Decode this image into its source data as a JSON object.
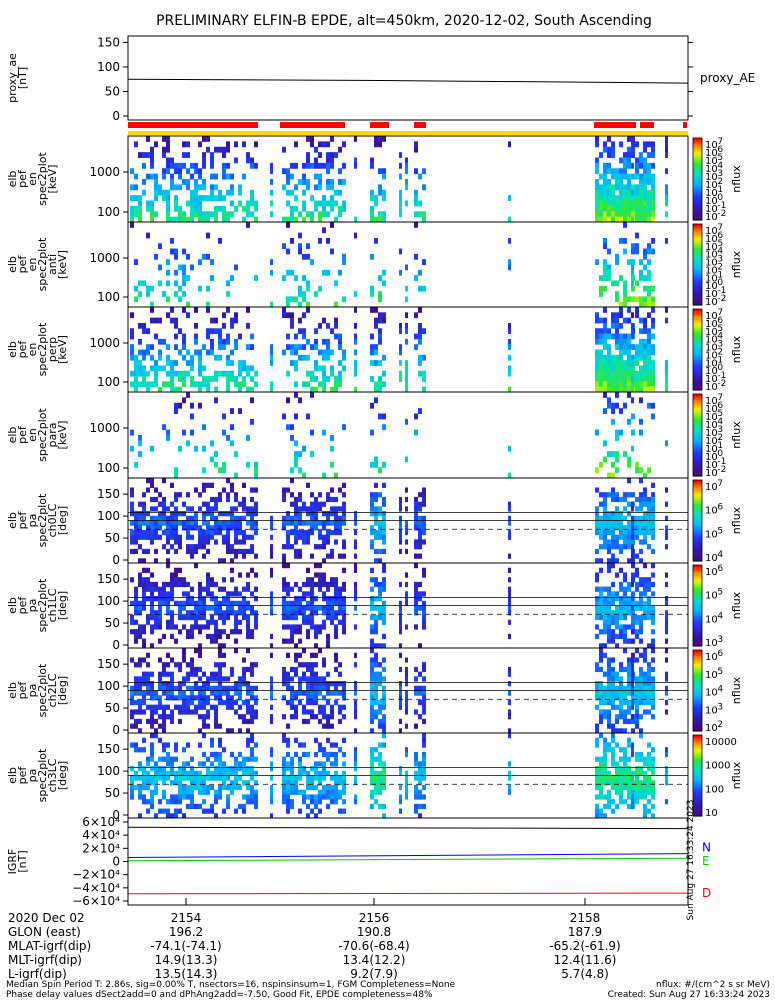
{
  "title": "PRELIMINARY ELFIN-B EPDE, alt=450km, 2020-12-02, South Ascending",
  "colors": {
    "science_bar": "#ff0000",
    "sun_bar": "#ffd800",
    "proxy_line": "#000000",
    "igrf_N": "#0000ff",
    "igrf_E": "#00cc00",
    "igrf_D": "#ff0000"
  },
  "chart_data": [
    {
      "type": "line",
      "panel": "proxy_ae",
      "ylabel_lines": [
        "proxy_ae",
        "[nT]"
      ],
      "yticks": [
        "0",
        "50",
        "100",
        "150"
      ],
      "ylim": [
        0,
        155
      ],
      "series": [
        {
          "name": "proxy_AE",
          "x": [
            0,
            0.5,
            1
          ],
          "values": [
            75,
            72,
            67
          ]
        }
      ]
    },
    {
      "type": "heatmap",
      "panel": "en_spec_0",
      "ylabel_lines": [
        "elb",
        "pef",
        "en",
        "spec2plot",
        "[keV]"
      ],
      "yticks": [
        "100",
        "1000"
      ],
      "yscale": "log",
      "colorbar": {
        "label": "nflux",
        "ticks": [
          "10",
          "10",
          "10",
          "10",
          "10",
          "10",
          "10",
          "10",
          "10",
          "10"
        ],
        "exponents": [
          "7",
          "6",
          "5",
          "4",
          "3",
          "2",
          "1",
          "0",
          "-1",
          "-2"
        ]
      }
    },
    {
      "type": "heatmap",
      "panel": "en_spec_anti",
      "ylabel_lines": [
        "elb",
        "pef",
        "en",
        "spec2plot",
        "anti",
        "[keV]"
      ],
      "yticks": [
        "100",
        "1000"
      ],
      "yscale": "log",
      "colorbar": {
        "label": "nflux",
        "ticks": [
          "10",
          "10",
          "10",
          "10",
          "10",
          "10",
          "10",
          "10",
          "10",
          "10"
        ],
        "exponents": [
          "7",
          "6",
          "5",
          "4",
          "3",
          "2",
          "1",
          "0",
          "-1",
          "-2"
        ]
      }
    },
    {
      "type": "heatmap",
      "panel": "en_spec_perp",
      "ylabel_lines": [
        "elb",
        "pef",
        "en",
        "spec2plot",
        "perp",
        "[keV]"
      ],
      "yticks": [
        "100",
        "1000"
      ],
      "yscale": "log",
      "colorbar": {
        "label": "nflux",
        "ticks": [
          "10",
          "10",
          "10",
          "10",
          "10",
          "10",
          "10",
          "10",
          "10",
          "10"
        ],
        "exponents": [
          "7",
          "6",
          "5",
          "4",
          "3",
          "2",
          "1",
          "0",
          "-1",
          "-2"
        ]
      }
    },
    {
      "type": "heatmap",
      "panel": "en_spec_para",
      "ylabel_lines": [
        "elb",
        "pef",
        "en",
        "spec2plot",
        "para",
        "[keV]"
      ],
      "yticks": [
        "100",
        "1000"
      ],
      "yscale": "log",
      "colorbar": {
        "label": "nflux",
        "ticks": [
          "10",
          "10",
          "10",
          "10",
          "10",
          "10",
          "10",
          "10",
          "10",
          "10"
        ],
        "exponents": [
          "7",
          "6",
          "5",
          "4",
          "3",
          "2",
          "1",
          "0",
          "-1",
          "-2"
        ]
      }
    },
    {
      "type": "heatmap",
      "panel": "pa_ch0LC",
      "ylabel_lines": [
        "elb",
        "pef",
        "pa",
        "spec2plot",
        "ch0LC",
        "[deg]"
      ],
      "yticks": [
        "0",
        "50",
        "100",
        "150"
      ],
      "ylim": [
        0,
        180
      ],
      "colorbar": {
        "label": "nflux",
        "ticks": [
          "10",
          "10",
          "10",
          "10"
        ],
        "exponents": [
          "7",
          "6",
          "5",
          "4"
        ]
      }
    },
    {
      "type": "heatmap",
      "panel": "pa_ch1LC",
      "ylabel_lines": [
        "elb",
        "pef",
        "pa",
        "spec2plot",
        "ch1LC",
        "[deg]"
      ],
      "yticks": [
        "0",
        "50",
        "100",
        "150"
      ],
      "ylim": [
        0,
        180
      ],
      "colorbar": {
        "label": "nflux",
        "ticks": [
          "10",
          "10",
          "10",
          "10"
        ],
        "exponents": [
          "6",
          "5",
          "4",
          "3"
        ]
      }
    },
    {
      "type": "heatmap",
      "panel": "pa_ch2LC",
      "ylabel_lines": [
        "elb",
        "pef",
        "pa",
        "spec2plot",
        "ch2LC",
        "[deg]"
      ],
      "yticks": [
        "0",
        "50",
        "100",
        "150"
      ],
      "ylim": [
        0,
        180
      ],
      "colorbar": {
        "label": "nflux",
        "ticks": [
          "10",
          "10",
          "10",
          "10",
          "10"
        ],
        "exponents": [
          "6",
          "5",
          "4",
          "3",
          "2"
        ]
      }
    },
    {
      "type": "heatmap",
      "panel": "pa_ch3LC",
      "ylabel_lines": [
        "elb",
        "pef",
        "pa",
        "spec2plot",
        "ch3LC",
        "[deg]"
      ],
      "yticks": [
        "0",
        "50",
        "100",
        "150"
      ],
      "ylim": [
        0,
        180
      ],
      "colorbar": {
        "label": "nflux",
        "ticks": [
          "10000",
          "1000",
          "100",
          "10"
        ],
        "exponents": [
          "",
          "",
          "",
          ""
        ]
      }
    },
    {
      "type": "line",
      "panel": "igrf",
      "ylabel_lines": [
        "IGRF",
        "[nT]"
      ],
      "yticks": [
        "6×10⁴",
        "4×10⁴",
        "2×10⁴",
        "0",
        "−2×10⁴",
        "−4×10⁴",
        "−6×10⁴"
      ],
      "ylim": [
        -60000,
        60000
      ],
      "series": [
        {
          "name": "N",
          "x": [
            0,
            1
          ],
          "values": [
            6000,
            12000
          ]
        },
        {
          "name": "E",
          "x": [
            0,
            1
          ],
          "values": [
            1000,
            5000
          ]
        },
        {
          "name": "D",
          "x": [
            0,
            1
          ],
          "values": [
            -49000,
            -48000
          ]
        },
        {
          "x": [
            0,
            1
          ],
          "values": [
            52000,
            50000
          ]
        }
      ]
    }
  ],
  "footer": {
    "rows": [
      {
        "label": "2020 Dec 02",
        "values": [
          "2154",
          "2156",
          "2158"
        ]
      },
      {
        "label": "GLON (east)",
        "values": [
          "196.2",
          "190.8",
          "187.9"
        ]
      },
      {
        "label": "MLAT-igrf(dip)",
        "values": [
          "-74.1(-74.1)",
          "-70.6(-68.4)",
          "-65.2(-61.9)"
        ]
      },
      {
        "label": "MLT-igrf(dip)",
        "values": [
          "14.9(13.3)",
          "13.4(12.2)",
          "12.4(11.6)"
        ]
      },
      {
        "label": "L-igrf(dip)",
        "values": [
          "13.5(14.3)",
          "9.2(7.9)",
          "5.7(4.8)"
        ]
      }
    ],
    "note1_left": "Median Spin Period T: 2.86s, sig=0.00% T, nsectors=16, nspinsinsum=1, FGM Completeness=None",
    "note2_left": "Phase delay values dSect2add=0 and dPhAng2add=-7.50, Good Fit, EPDE completeness=48%",
    "note1_right": "nflux: #/(cm^2 s sr MeV)",
    "note2_right": "Created: Sun Aug 27 16:33:24 2023",
    "side_stamp": "Sun Aug 27 16:33:24 2023"
  }
}
